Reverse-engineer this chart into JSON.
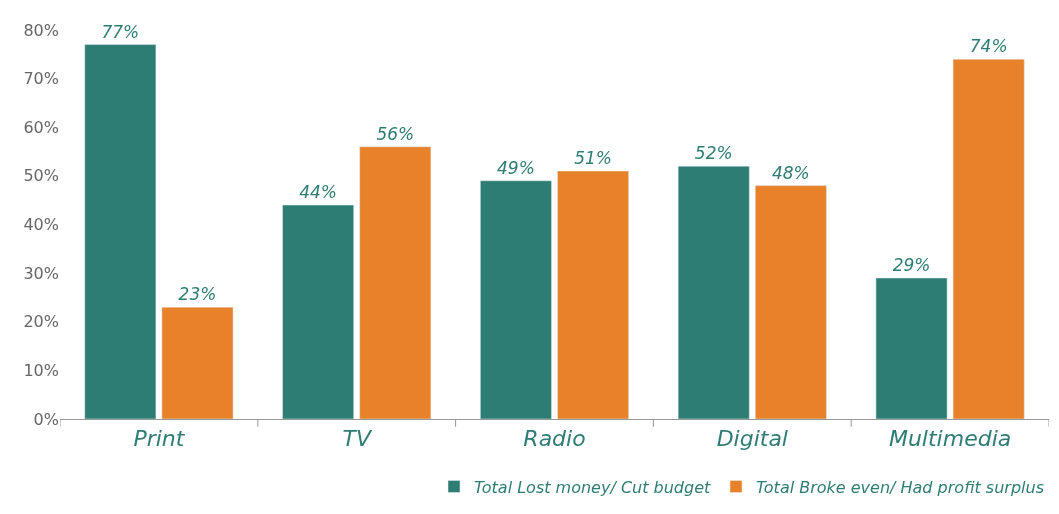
{
  "chart_data": {
    "type": "bar",
    "categories": [
      "Print",
      "TV",
      "Radio",
      "Digital",
      "Multimedia"
    ],
    "series": [
      {
        "name": "Total Lost money/ Cut budget",
        "color": "#2e7d74",
        "values": [
          77,
          44,
          49,
          52,
          29
        ],
        "value_labels": [
          "77%",
          "44%",
          "49%",
          "52%",
          "29%"
        ]
      },
      {
        "name": "Total Broke even/ Had profit surplus",
        "color": "#e8822a",
        "values": [
          23,
          56,
          51,
          48,
          74
        ],
        "value_labels": [
          "23%",
          "56%",
          "51%",
          "48%",
          "74%"
        ]
      }
    ],
    "ylim": [
      0,
      80
    ],
    "yticks": [
      {
        "value": 0,
        "label": "0%"
      },
      {
        "value": 10,
        "label": "10%"
      },
      {
        "value": 20,
        "label": "20%"
      },
      {
        "value": 30,
        "label": "30%"
      },
      {
        "value": 40,
        "label": "40%"
      },
      {
        "value": 50,
        "label": "50%"
      },
      {
        "value": 60,
        "label": "60%"
      },
      {
        "value": 70,
        "label": "70%"
      },
      {
        "value": 80,
        "label": "80%"
      }
    ],
    "legend": "bottom right"
  }
}
